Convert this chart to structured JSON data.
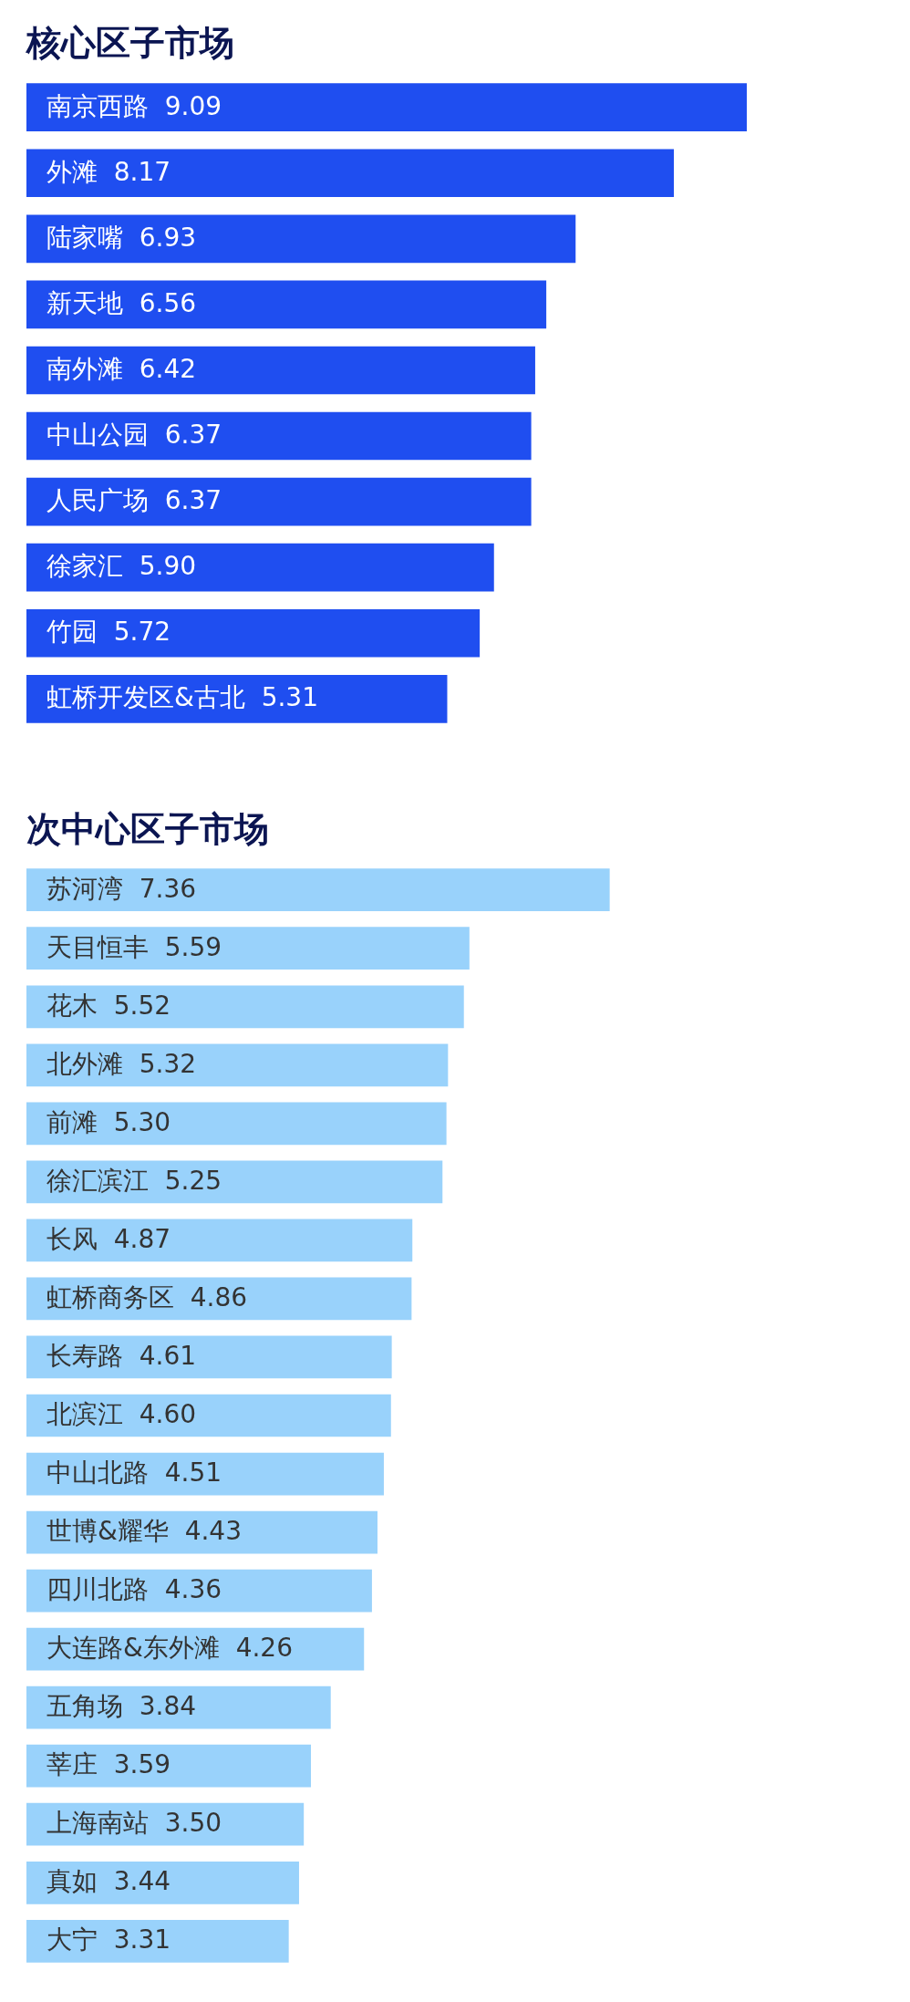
{
  "chart_data": [
    {
      "type": "bar",
      "orientation": "horizontal",
      "title": "核心区子市场",
      "color": "#1f4ef0",
      "categories": [
        "南京西路",
        "外滩",
        "陆家嘴",
        "新天地",
        "南外滩",
        "中山公园",
        "人民广场",
        "徐家汇",
        "竹园",
        "虹桥开发区&古北"
      ],
      "values": [
        9.09,
        8.17,
        6.93,
        6.56,
        6.42,
        6.37,
        6.37,
        5.9,
        5.72,
        5.31
      ],
      "value_labels": [
        "9.09",
        "8.17",
        "6.93",
        "6.56",
        "6.42",
        "6.37",
        "6.37",
        "5.90",
        "5.72",
        "5.31"
      ]
    },
    {
      "type": "bar",
      "orientation": "horizontal",
      "title": "次中心区子市场",
      "color": "#99d2fb",
      "categories": [
        "苏河湾",
        "天目恒丰",
        "花木",
        "北外滩",
        "前滩",
        "徐汇滨江",
        "长风",
        "虹桥商务区",
        "长寿路",
        "北滨江",
        "中山北路",
        "世博&耀华",
        "四川北路",
        "大连路&东外滩",
        "五角场",
        "莘庄",
        "上海南站",
        "真如",
        "大宁"
      ],
      "values": [
        7.36,
        5.59,
        5.52,
        5.32,
        5.3,
        5.25,
        4.87,
        4.86,
        4.61,
        4.6,
        4.51,
        4.43,
        4.36,
        4.26,
        3.84,
        3.59,
        3.5,
        3.44,
        3.31
      ],
      "value_labels": [
        "7.36",
        "5.59",
        "5.52",
        "5.32",
        "5.30",
        "5.25",
        "4.87",
        "4.86",
        "4.61",
        "4.60",
        "4.51",
        "4.43",
        "4.36",
        "4.26",
        "3.84",
        "3.59",
        "3.50",
        "3.44",
        "3.31"
      ]
    }
  ]
}
